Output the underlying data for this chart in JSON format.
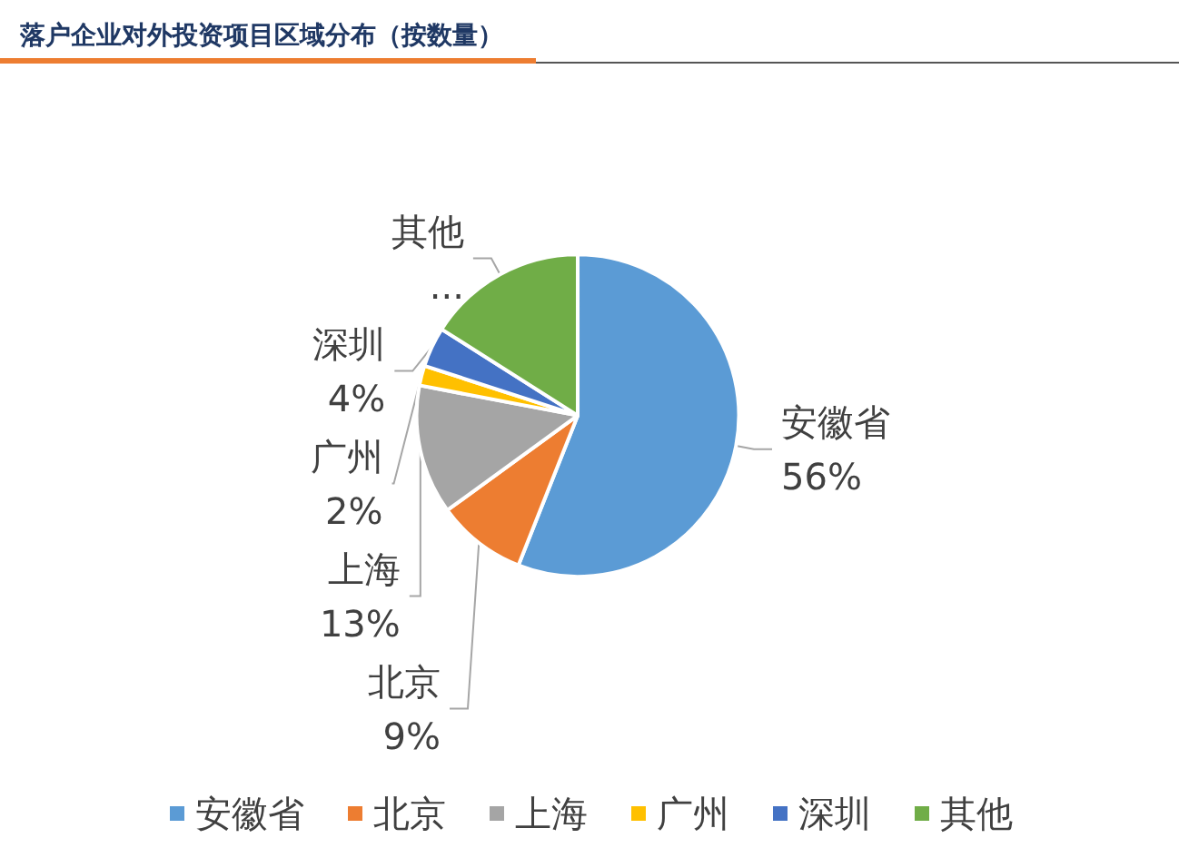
{
  "chart_data": {
    "type": "pie",
    "title": "落户企业对外投资项目区域分布（按数量）",
    "categories": [
      "安徽省",
      "北京",
      "上海",
      "广州",
      "深圳",
      "其他"
    ],
    "values": [
      56,
      9,
      13,
      2,
      4,
      16
    ],
    "colors": [
      "#5b9bd5",
      "#ed7d31",
      "#a5a5a5",
      "#ffc000",
      "#4472c4",
      "#70ad47"
    ],
    "value_labels": [
      "56%",
      "9%",
      "13%",
      "2%",
      "4%",
      "..."
    ],
    "legend": "bottom"
  }
}
